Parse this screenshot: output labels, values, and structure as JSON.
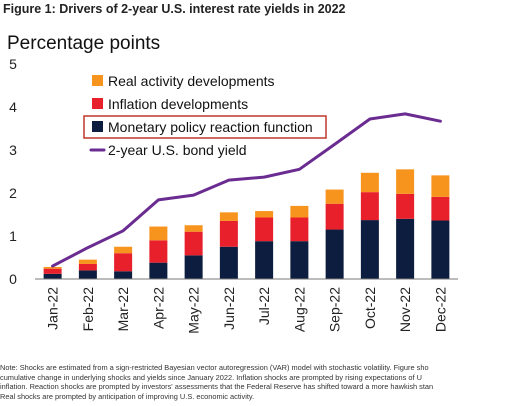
{
  "figure_title": "Figure 1: Drivers of 2-year U.S. interest rate yields in 2022",
  "note_lines": [
    "Note: Shocks are estimated from a sign-restricted Bayesian vector autoregression (VAR) model with stochastic volatility. Figure sho",
    "cumulative change in underlying shocks and yields since January 2022. Inflation shocks are prompted by rising expectations of U",
    "inflation. Reaction shocks are prompted by investors' assessments that the Federal Reserve has shifted toward a more hawkish stan",
    "Real shocks are prompted by anticipation of improving U.S. economic activity."
  ],
  "chart_data": {
    "type": "bar",
    "stacked": true,
    "ylabel": "Percentage points",
    "ylim": [
      0,
      5
    ],
    "yticks": [
      0,
      1,
      2,
      3,
      4,
      5
    ],
    "grid": false,
    "legend_position": "top-left",
    "categories": [
      "Jan-22",
      "Feb-22",
      "Mar-22",
      "Apr-22",
      "May-22",
      "Jun-22",
      "Jul-22",
      "Aug-22",
      "Sep-22",
      "Oct-22",
      "Nov-22",
      "Dec-22"
    ],
    "series": [
      {
        "name": "Monetary policy reaction function",
        "color": "#0d1d3f",
        "values": [
          0.12,
          0.2,
          0.18,
          0.38,
          0.55,
          0.75,
          0.88,
          0.88,
          1.15,
          1.37,
          1.4,
          1.36
        ]
      },
      {
        "name": "Inflation developments",
        "color": "#e8202c",
        "values": [
          0.12,
          0.15,
          0.42,
          0.52,
          0.55,
          0.6,
          0.55,
          0.55,
          0.6,
          0.65,
          0.58,
          0.55
        ]
      },
      {
        "name": "Real activity developments",
        "color": "#f7941d",
        "values": [
          0.04,
          0.1,
          0.15,
          0.32,
          0.15,
          0.2,
          0.15,
          0.27,
          0.33,
          0.45,
          0.57,
          0.5
        ]
      }
    ],
    "line": {
      "name": "2-year U.S. bond yield",
      "color": "#6b2c91",
      "values": [
        0.3,
        0.73,
        1.12,
        1.84,
        1.95,
        2.3,
        2.37,
        2.55,
        3.13,
        3.72,
        3.84,
        3.67
      ]
    },
    "legend_order": [
      "Real activity developments",
      "Inflation developments",
      "Monetary policy reaction function",
      "2-year U.S. bond yield"
    ],
    "legend_highlight": "Monetary policy reaction function"
  }
}
